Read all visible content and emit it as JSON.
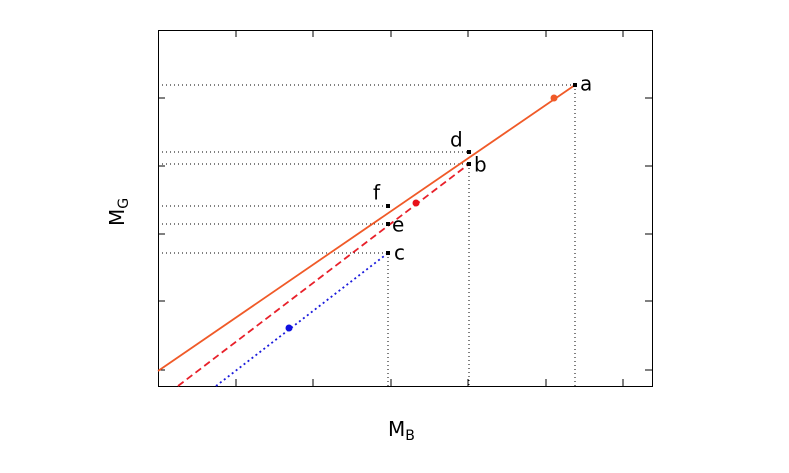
{
  "axes": {
    "x_label": {
      "main": "M",
      "sub": "B"
    },
    "y_label": {
      "main": "M",
      "sub": "G"
    }
  },
  "points": [
    {
      "label": "a"
    },
    {
      "label": "b"
    },
    {
      "label": "c"
    },
    {
      "label": "d"
    },
    {
      "label": "e"
    },
    {
      "label": "f"
    }
  ]
}
